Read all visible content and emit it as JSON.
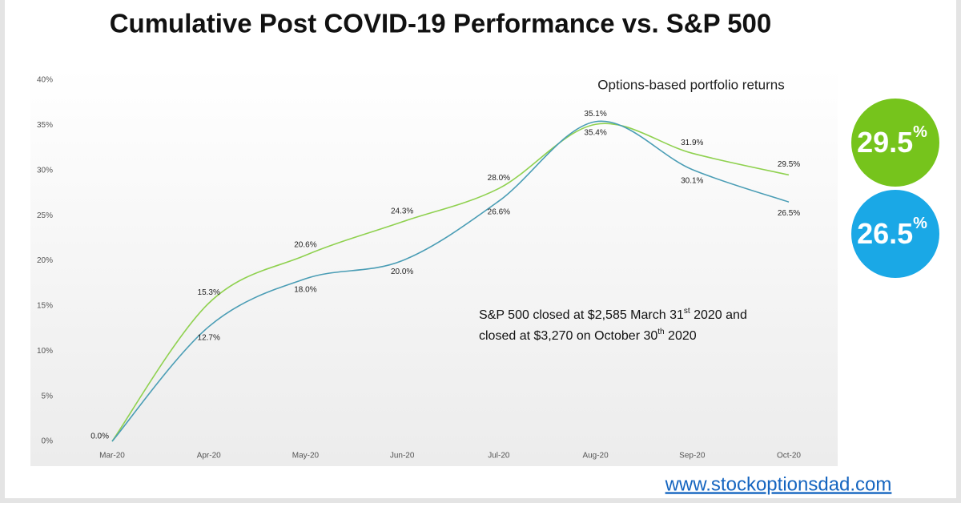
{
  "chart_data": {
    "type": "line",
    "title": "Cumulative Post COVID-19 Performance vs. S&P 500",
    "categories": [
      "Mar-20",
      "Apr-20",
      "May-20",
      "Jun-20",
      "Jul-20",
      "Aug-20",
      "Sep-20",
      "Oct-20"
    ],
    "series": [
      {
        "name": "Options-based portfolio returns",
        "color": "#8fd14f",
        "values": [
          0.0,
          15.3,
          20.6,
          24.3,
          28.0,
          35.1,
          31.9,
          29.5
        ],
        "value_labels": [
          "0.0%",
          "15.3%",
          "20.6%",
          "24.3%",
          "28.0%",
          "35.1%",
          "31.9%",
          "29.5%"
        ]
      },
      {
        "color": "#4a9db5",
        "values": [
          0.0,
          12.7,
          18.0,
          20.0,
          26.6,
          35.4,
          30.1,
          26.5
        ],
        "value_labels": [
          null,
          "12.7%",
          "18.0%",
          "20.0%",
          "26.6%",
          "35.4%",
          "30.1%",
          "26.5%"
        ]
      }
    ],
    "ylim": [
      0,
      40
    ],
    "yticks": [
      {
        "value": 0,
        "label": "0%"
      },
      {
        "value": 5,
        "label": "5%"
      },
      {
        "value": 10,
        "label": "10%"
      },
      {
        "value": 15,
        "label": "15%"
      },
      {
        "value": 20,
        "label": "20%"
      },
      {
        "value": 25,
        "label": "25%"
      },
      {
        "value": 30,
        "label": "30%"
      },
      {
        "value": 35,
        "label": "35%"
      },
      {
        "value": 40,
        "label": "40%"
      }
    ],
    "grid": false,
    "annotation": [
      [
        "S&P 500 closed at $2,585 March 31",
        "st",
        " 2020 and"
      ],
      [
        "closed at $3,270 on October 30",
        "th",
        " 2020"
      ]
    ],
    "badges": [
      {
        "text": "29.5",
        "sup": "%",
        "color": "#76c41c"
      },
      {
        "text": "26.5",
        "sup": "%",
        "color": "#1aa8e6"
      }
    ],
    "source": "www.stockoptionsdad.com"
  }
}
